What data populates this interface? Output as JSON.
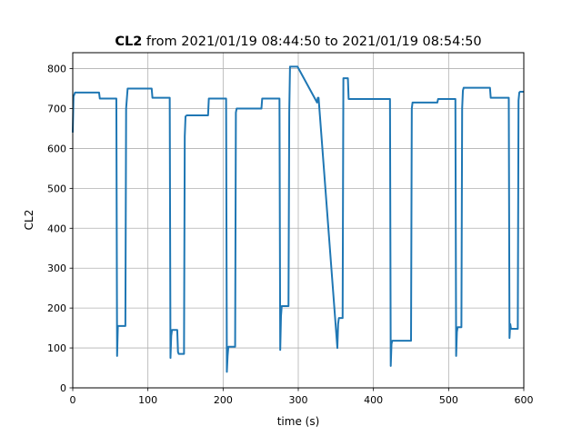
{
  "chart_data": {
    "type": "line",
    "title_bold": "CL2",
    "title_rest": " from 2021/01/19 08:44:50 to 2021/01/19 08:54:50",
    "xlabel": "time (s)",
    "ylabel": "CL2",
    "xlim": [
      0,
      600
    ],
    "ylim": [
      0,
      840
    ],
    "xticks": [
      0,
      100,
      200,
      300,
      400,
      500,
      600
    ],
    "yticks": [
      0,
      100,
      200,
      300,
      400,
      500,
      600,
      700,
      800
    ],
    "grid": true,
    "line_color": "#1f77b4",
    "series": [
      {
        "x": [
          0,
          1,
          3,
          35,
          36,
          58,
          59,
          60,
          61,
          70,
          71,
          73,
          105,
          106,
          129,
          130,
          131,
          132,
          139,
          140,
          141,
          142,
          148,
          149,
          150,
          151,
          152,
          180,
          181,
          204,
          205,
          206,
          207,
          215,
          216,
          217,
          218,
          251,
          252,
          275,
          276,
          277,
          278,
          286,
          287,
          288,
          289,
          297,
          298,
          299,
          325,
          326,
          327,
          352,
          353,
          354,
          355,
          359,
          360,
          365,
          366,
          367,
          398,
          399,
          422,
          423,
          424,
          425,
          427,
          428,
          450,
          451,
          452,
          453,
          485,
          486,
          509,
          510,
          511,
          512,
          516,
          517,
          518,
          519,
          520,
          555,
          556,
          580,
          581,
          582,
          583,
          585,
          586,
          592,
          593,
          594,
          595,
          600
        ],
        "y": [
          640,
          730,
          740,
          740,
          725,
          725,
          80,
          155,
          155,
          155,
          700,
          750,
          750,
          727,
          727,
          75,
          130,
          145,
          145,
          90,
          85,
          85,
          85,
          630,
          680,
          682,
          683,
          683,
          725,
          725,
          40,
          80,
          103,
          103,
          103,
          690,
          700,
          700,
          725,
          725,
          95,
          180,
          205,
          205,
          205,
          690,
          805,
          805,
          805,
          805,
          715,
          727,
          727,
          100,
          160,
          175,
          175,
          175,
          776,
          776,
          776,
          724,
          724,
          724,
          724,
          55,
          110,
          118,
          118,
          118,
          118,
          700,
          715,
          715,
          715,
          724,
          724,
          80,
          140,
          152,
          152,
          152,
          700,
          745,
          752,
          752,
          727,
          727,
          125,
          160,
          148,
          148,
          148,
          148,
          720,
          740,
          742,
          742
        ]
      }
    ]
  }
}
